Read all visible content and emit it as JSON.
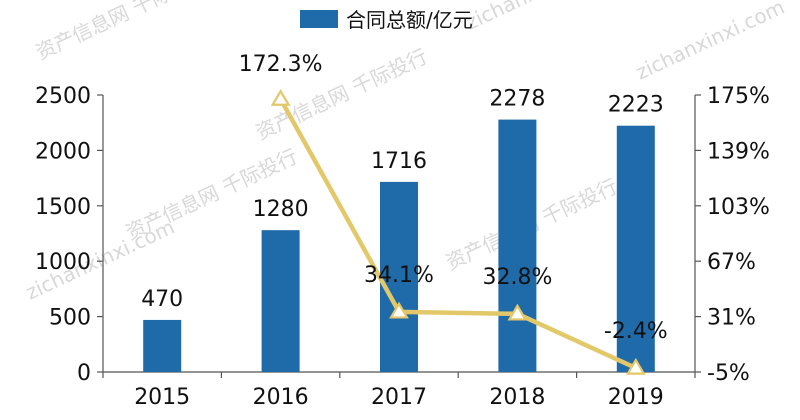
{
  "chart_data": {
    "type": "bar",
    "categories": [
      "2015",
      "2016",
      "2017",
      "2018",
      "2019"
    ],
    "series": [
      {
        "name": "合同总额/亿元",
        "type": "bar",
        "axis": "left",
        "color": "#1f6aa8",
        "values": [
          470,
          1280,
          1716,
          2278,
          2223
        ],
        "labels": [
          "470",
          "1280",
          "1716",
          "2278",
          "2223"
        ]
      },
      {
        "type": "line",
        "axis": "right",
        "color": "#e3c86a",
        "values": [
          null,
          172.3,
          34.1,
          32.8,
          -2.4
        ],
        "labels": [
          "",
          "172.3%",
          "34.1%",
          "32.8%",
          "-2.4%"
        ]
      }
    ],
    "left_axis": {
      "range": [
        0,
        2500
      ],
      "ticks": [
        0,
        500,
        1000,
        1500,
        2000,
        2500
      ],
      "tick_labels": [
        "0",
        "500",
        "1000",
        "1500",
        "2000",
        "2500"
      ]
    },
    "right_axis": {
      "range": [
        -5,
        175
      ],
      "ticks": [
        -5,
        31,
        67,
        103,
        139,
        175
      ],
      "tick_labels": [
        "-5%",
        "31%",
        "67%",
        "103%",
        "139%",
        "175%"
      ]
    },
    "legend_position": "top-center",
    "grid": false
  },
  "watermark": {
    "texts": [
      "资产信息网 千际投行",
      "zichanxinxi.com"
    ]
  }
}
